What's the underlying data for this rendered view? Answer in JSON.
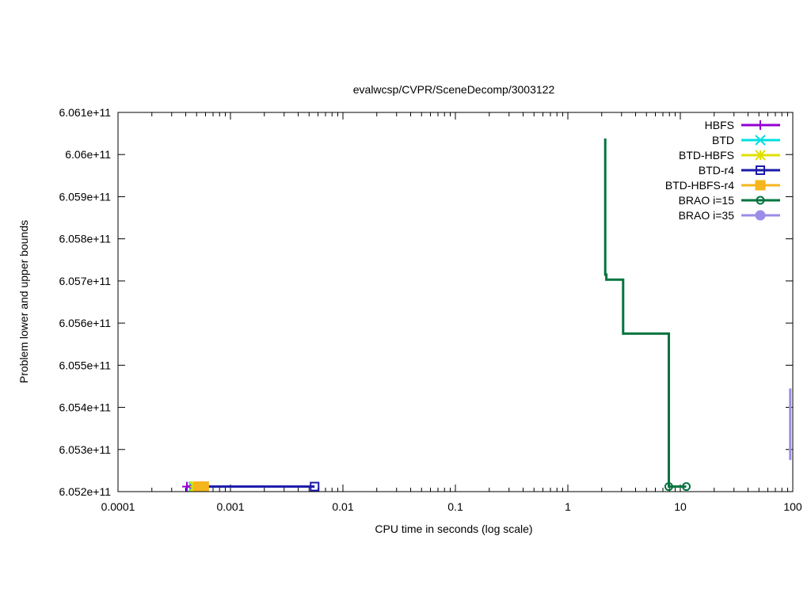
{
  "chart_data": {
    "type": "line",
    "title": "evalwcsp/CVPR/SceneDecomp/3003122",
    "xlabel": "CPU time in seconds (log scale)",
    "ylabel": "Problem lower and upper bounds",
    "xscale": "log",
    "xlim": [
      0.0001,
      100
    ],
    "ylim": [
      605200000000,
      606100000000
    ],
    "grid": false,
    "legend_position": "top-right",
    "x_ticks": [
      {
        "value": 0.0001,
        "label": "0.0001"
      },
      {
        "value": 0.001,
        "label": "0.001"
      },
      {
        "value": 0.01,
        "label": "0.01"
      },
      {
        "value": 0.1,
        "label": "0.1"
      },
      {
        "value": 1,
        "label": "1"
      },
      {
        "value": 10,
        "label": "10"
      },
      {
        "value": 100,
        "label": "100"
      }
    ],
    "y_ticks": [
      {
        "value": 605200000000,
        "label": "6.052e+11"
      },
      {
        "value": 605300000000,
        "label": "6.053e+11"
      },
      {
        "value": 605400000000,
        "label": "6.054e+11"
      },
      {
        "value": 605500000000,
        "label": "6.055e+11"
      },
      {
        "value": 605600000000,
        "label": "6.056e+11"
      },
      {
        "value": 605700000000,
        "label": "6.057e+11"
      },
      {
        "value": 605800000000,
        "label": "6.058e+11"
      },
      {
        "value": 605900000000,
        "label": "6.059e+11"
      },
      {
        "value": 606000000000,
        "label": "6.06e+11"
      },
      {
        "value": 606100000000,
        "label": "6.061e+11"
      }
    ],
    "series": [
      {
        "name": "HBFS",
        "color": "#9400d3",
        "marker": "plus",
        "points": [
          [
            0.00041,
            605212000000
          ],
          [
            0.00044,
            605212000000
          ]
        ]
      },
      {
        "name": "BTD",
        "color": "#00e0e0",
        "marker": "cross",
        "points": [
          [
            0.00047,
            605212000000
          ],
          [
            0.00049,
            605212000000
          ]
        ]
      },
      {
        "name": "BTD-HBFS",
        "color": "#e0e000",
        "marker": "star",
        "points": [
          [
            0.00048,
            605212000000
          ],
          [
            0.0005,
            605212000000
          ]
        ]
      },
      {
        "name": "BTD-r4",
        "color": "#1a1aaa",
        "marker": "open-square",
        "points": [
          [
            0.00055,
            605212000000
          ],
          [
            0.0056,
            605212000000
          ]
        ]
      },
      {
        "name": "BTD-HBFS-r4",
        "color": "#f5b51c",
        "marker": "filled-square",
        "points": [
          [
            0.00052,
            605212000000
          ],
          [
            0.00058,
            605212000000
          ]
        ]
      },
      {
        "name": "BRAO i=15",
        "color": "#00743f",
        "marker": "open-circle",
        "points": [
          [
            2.15,
            606038000000
          ],
          [
            2.15,
            605715000000
          ],
          [
            2.2,
            605715000000
          ],
          [
            2.2,
            605703000000
          ],
          [
            3.1,
            605703000000
          ],
          [
            3.1,
            605575000000
          ],
          [
            7.9,
            605575000000
          ],
          [
            7.9,
            605212000000
          ],
          [
            11.3,
            605212000000
          ]
        ],
        "marker_points": [
          [
            7.9,
            605212000000
          ],
          [
            11.3,
            605212000000
          ]
        ]
      },
      {
        "name": "BRAO i=35",
        "color": "#9b8de8",
        "marker": "filled-circle",
        "points": [
          [
            95,
            605445000000
          ],
          [
            95,
            605275000000
          ]
        ],
        "marker_points": []
      }
    ]
  }
}
